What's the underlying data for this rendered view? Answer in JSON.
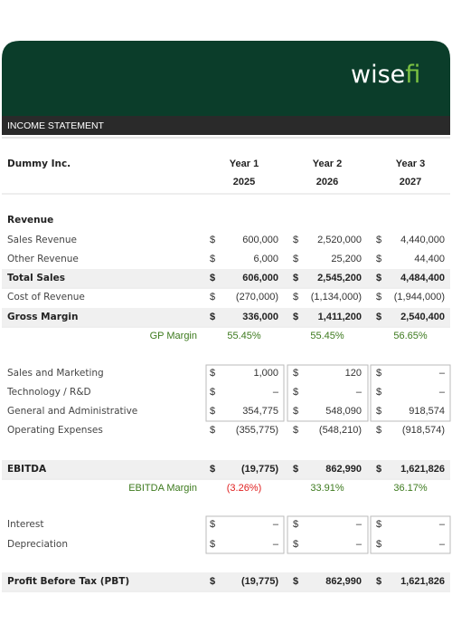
{
  "header": {
    "logo_main": "wise",
    "logo_accent": "fi",
    "title": "INCOME STATEMENT"
  },
  "table": {
    "company": "Dummy Inc.",
    "columns": [
      {
        "year": "Year 1",
        "date": "2025"
      },
      {
        "year": "Year 2",
        "date": "2026"
      },
      {
        "year": "Year 3",
        "date": "2027"
      }
    ],
    "rows": [
      {
        "label": "Revenue"
      },
      {
        "label": "Sales Revenue",
        "cells": [
          [
            "$",
            "600,000"
          ],
          [
            "$",
            "2,520,000"
          ],
          [
            "$",
            "4,440,000"
          ]
        ]
      },
      {
        "label": "Other Revenue",
        "cells": [
          [
            "$",
            "6,000"
          ],
          [
            "$",
            "25,200"
          ],
          [
            "$",
            "44,400"
          ]
        ]
      },
      {
        "label": "Total Sales",
        "cells": [
          [
            "$",
            "606,000"
          ],
          [
            "$",
            "2,545,200"
          ],
          [
            "$",
            "4,484,400"
          ]
        ]
      },
      {
        "label": "Cost of Revenue",
        "cells": [
          [
            "$",
            "(270,000)"
          ],
          [
            "$",
            "(1,134,000)"
          ],
          [
            "$",
            "(1,944,000)"
          ]
        ]
      },
      {
        "label": "Gross Margin",
        "cells": [
          [
            "$",
            "336,000"
          ],
          [
            "$",
            "1,411,200"
          ],
          [
            "$",
            "2,540,400"
          ]
        ]
      },
      {
        "label": "GP Margin",
        "cells": [
          "55.45%",
          "55.45%",
          "56.65%"
        ]
      },
      {
        "label": "Sales and Marketing",
        "cells": [
          [
            "$",
            "1,000"
          ],
          [
            "$",
            "120"
          ],
          [
            "$",
            "–"
          ]
        ]
      },
      {
        "label": "Technology / R&D",
        "cells": [
          [
            "$",
            "–"
          ],
          [
            "$",
            "–"
          ],
          [
            "$",
            "–"
          ]
        ]
      },
      {
        "label": "General and Administrative",
        "cells": [
          [
            "$",
            "354,775"
          ],
          [
            "$",
            "548,090"
          ],
          [
            "$",
            "918,574"
          ]
        ]
      },
      {
        "label": "Operating Expenses",
        "cells": [
          [
            "$",
            "(355,775)"
          ],
          [
            "$",
            "(548,210)"
          ],
          [
            "$",
            "(918,574)"
          ]
        ]
      },
      {
        "label": "EBITDA",
        "cells": [
          [
            "$",
            "(19,775)"
          ],
          [
            "$",
            "862,990"
          ],
          [
            "$",
            "1,621,826"
          ]
        ]
      },
      {
        "label": "EBITDA Margin",
        "cells": [
          "(3.26%)",
          "33.91%",
          "36.17%"
        ]
      },
      {
        "label": "Interest",
        "cells": [
          [
            "$",
            "–"
          ],
          [
            "$",
            "–"
          ],
          [
            "$",
            "–"
          ]
        ]
      },
      {
        "label": "Depreciation",
        "cells": [
          [
            "$",
            "–"
          ],
          [
            "$",
            "–"
          ],
          [
            "$",
            "–"
          ]
        ]
      },
      {
        "label": "Profit Before Tax (PBT)",
        "cells": [
          [
            "$",
            "(19,775)"
          ],
          [
            "$",
            "862,990"
          ],
          [
            "$",
            "1,621,826"
          ]
        ]
      }
    ]
  }
}
